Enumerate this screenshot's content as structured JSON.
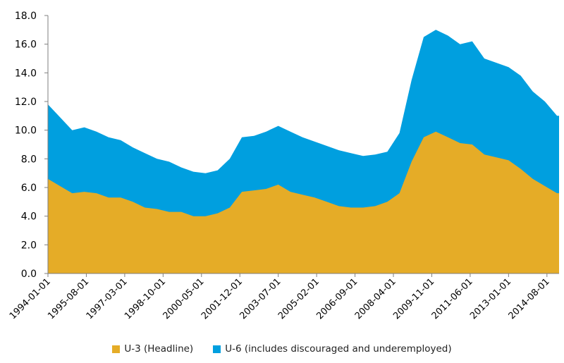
{
  "chart_data": {
    "type": "area",
    "stacked": false,
    "x_ticks": [
      "1994-01-01",
      "1995-08-01",
      "1997-03-01",
      "1998-10-01",
      "2000-05-01",
      "2001-12-01",
      "2003-07-01",
      "2005-02-01",
      "2006-09-01",
      "2008-04-01",
      "2009-11-01",
      "2011-06-01",
      "2013-01-01",
      "2014-08-01"
    ],
    "y_ticks": [
      "0.0",
      "2.0",
      "4.0",
      "6.0",
      "8.0",
      "10.0",
      "12.0",
      "14.0",
      "16.0",
      "18.0"
    ],
    "ylim": [
      0,
      18
    ],
    "x_start": "1994-01",
    "x_end": "2015-02",
    "grid": false,
    "legend_position": "bottom",
    "x": [
      "1994-01",
      "1994-07",
      "1995-01",
      "1995-07",
      "1996-01",
      "1996-07",
      "1997-01",
      "1997-07",
      "1998-01",
      "1998-07",
      "1999-01",
      "1999-07",
      "2000-01",
      "2000-07",
      "2001-01",
      "2001-07",
      "2002-01",
      "2002-07",
      "2003-01",
      "2003-07",
      "2004-01",
      "2004-07",
      "2005-01",
      "2005-07",
      "2006-01",
      "2006-07",
      "2007-01",
      "2007-07",
      "2008-01",
      "2008-07",
      "2009-01",
      "2009-07",
      "2010-01",
      "2010-07",
      "2011-01",
      "2011-07",
      "2012-01",
      "2012-07",
      "2013-01",
      "2013-07",
      "2014-01",
      "2014-07",
      "2015-01"
    ],
    "series": [
      {
        "name": "U-6 (includes discouraged and underemployed)",
        "color": "#009fdf",
        "values": [
          11.8,
          10.9,
          10.0,
          10.2,
          9.9,
          9.5,
          9.3,
          8.8,
          8.4,
          8.0,
          7.8,
          7.4,
          7.1,
          7.0,
          7.2,
          8.0,
          9.5,
          9.6,
          9.9,
          10.3,
          9.9,
          9.5,
          9.2,
          8.9,
          8.6,
          8.4,
          8.2,
          8.3,
          8.5,
          9.8,
          13.5,
          16.5,
          17.0,
          16.6,
          16.0,
          16.2,
          15.0,
          14.7,
          14.4,
          13.8,
          12.7,
          12.0,
          11.0
        ]
      },
      {
        "name": "U-3 (Headline)",
        "color": "#e5ac27",
        "values": [
          6.6,
          6.1,
          5.6,
          5.7,
          5.6,
          5.3,
          5.3,
          5.0,
          4.6,
          4.5,
          4.3,
          4.3,
          4.0,
          4.0,
          4.2,
          4.6,
          5.7,
          5.8,
          5.9,
          6.2,
          5.7,
          5.5,
          5.3,
          5.0,
          4.7,
          4.6,
          4.6,
          4.7,
          5.0,
          5.6,
          7.8,
          9.5,
          9.9,
          9.5,
          9.1,
          9.0,
          8.3,
          8.1,
          7.9,
          7.3,
          6.6,
          6.1,
          5.6
        ]
      }
    ]
  }
}
